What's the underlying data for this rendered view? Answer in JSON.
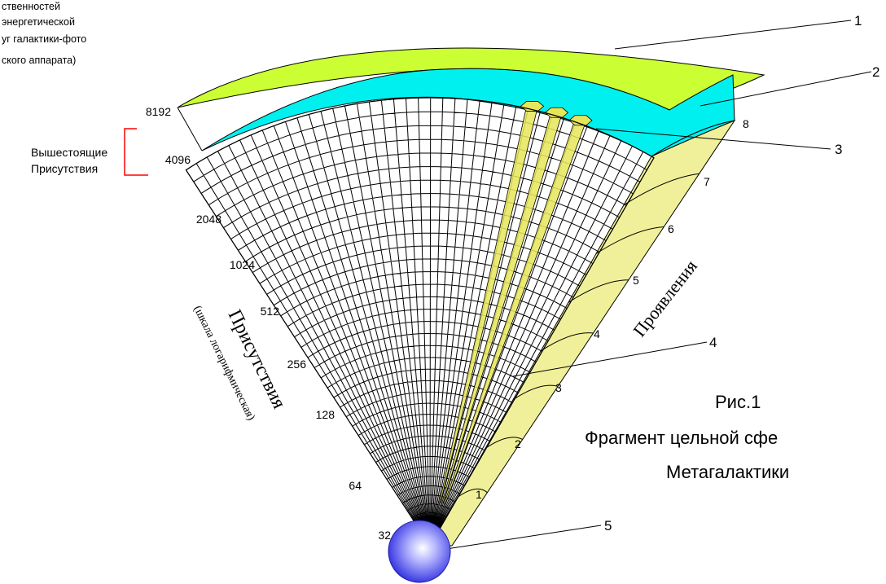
{
  "corner_note": {
    "lines": [
      "ственностей",
      "энергетической",
      "уг галактики-фото",
      "ского аппарата)"
    ]
  },
  "higher_bracket_label": [
    "Вышестоящие",
    "Присутствия"
  ],
  "log_scale": {
    "title": "Присутствия",
    "subtitle": "(шкала логарифмическая)",
    "ticks": [
      "32",
      "64",
      "128",
      "256",
      "512",
      "1024",
      "2048",
      "4096",
      "8192"
    ]
  },
  "manifestations": {
    "title": "Проявления",
    "ticks": [
      "1",
      "2",
      "3",
      "4",
      "5",
      "6",
      "7",
      "8"
    ]
  },
  "callouts": [
    "1",
    "2",
    "3",
    "4",
    "5"
  ],
  "caption": {
    "number": "Рис.1",
    "line1": "Фрагмент цельной сфе",
    "line2": "Метагалактики"
  },
  "colors": {
    "green_band": "#ccff33",
    "cyan_band": "#00f0f0",
    "side_wall": "#f0f09a",
    "bars": "#e6e65a",
    "bracket": "#ff0000",
    "sphere": "#3333ff"
  }
}
